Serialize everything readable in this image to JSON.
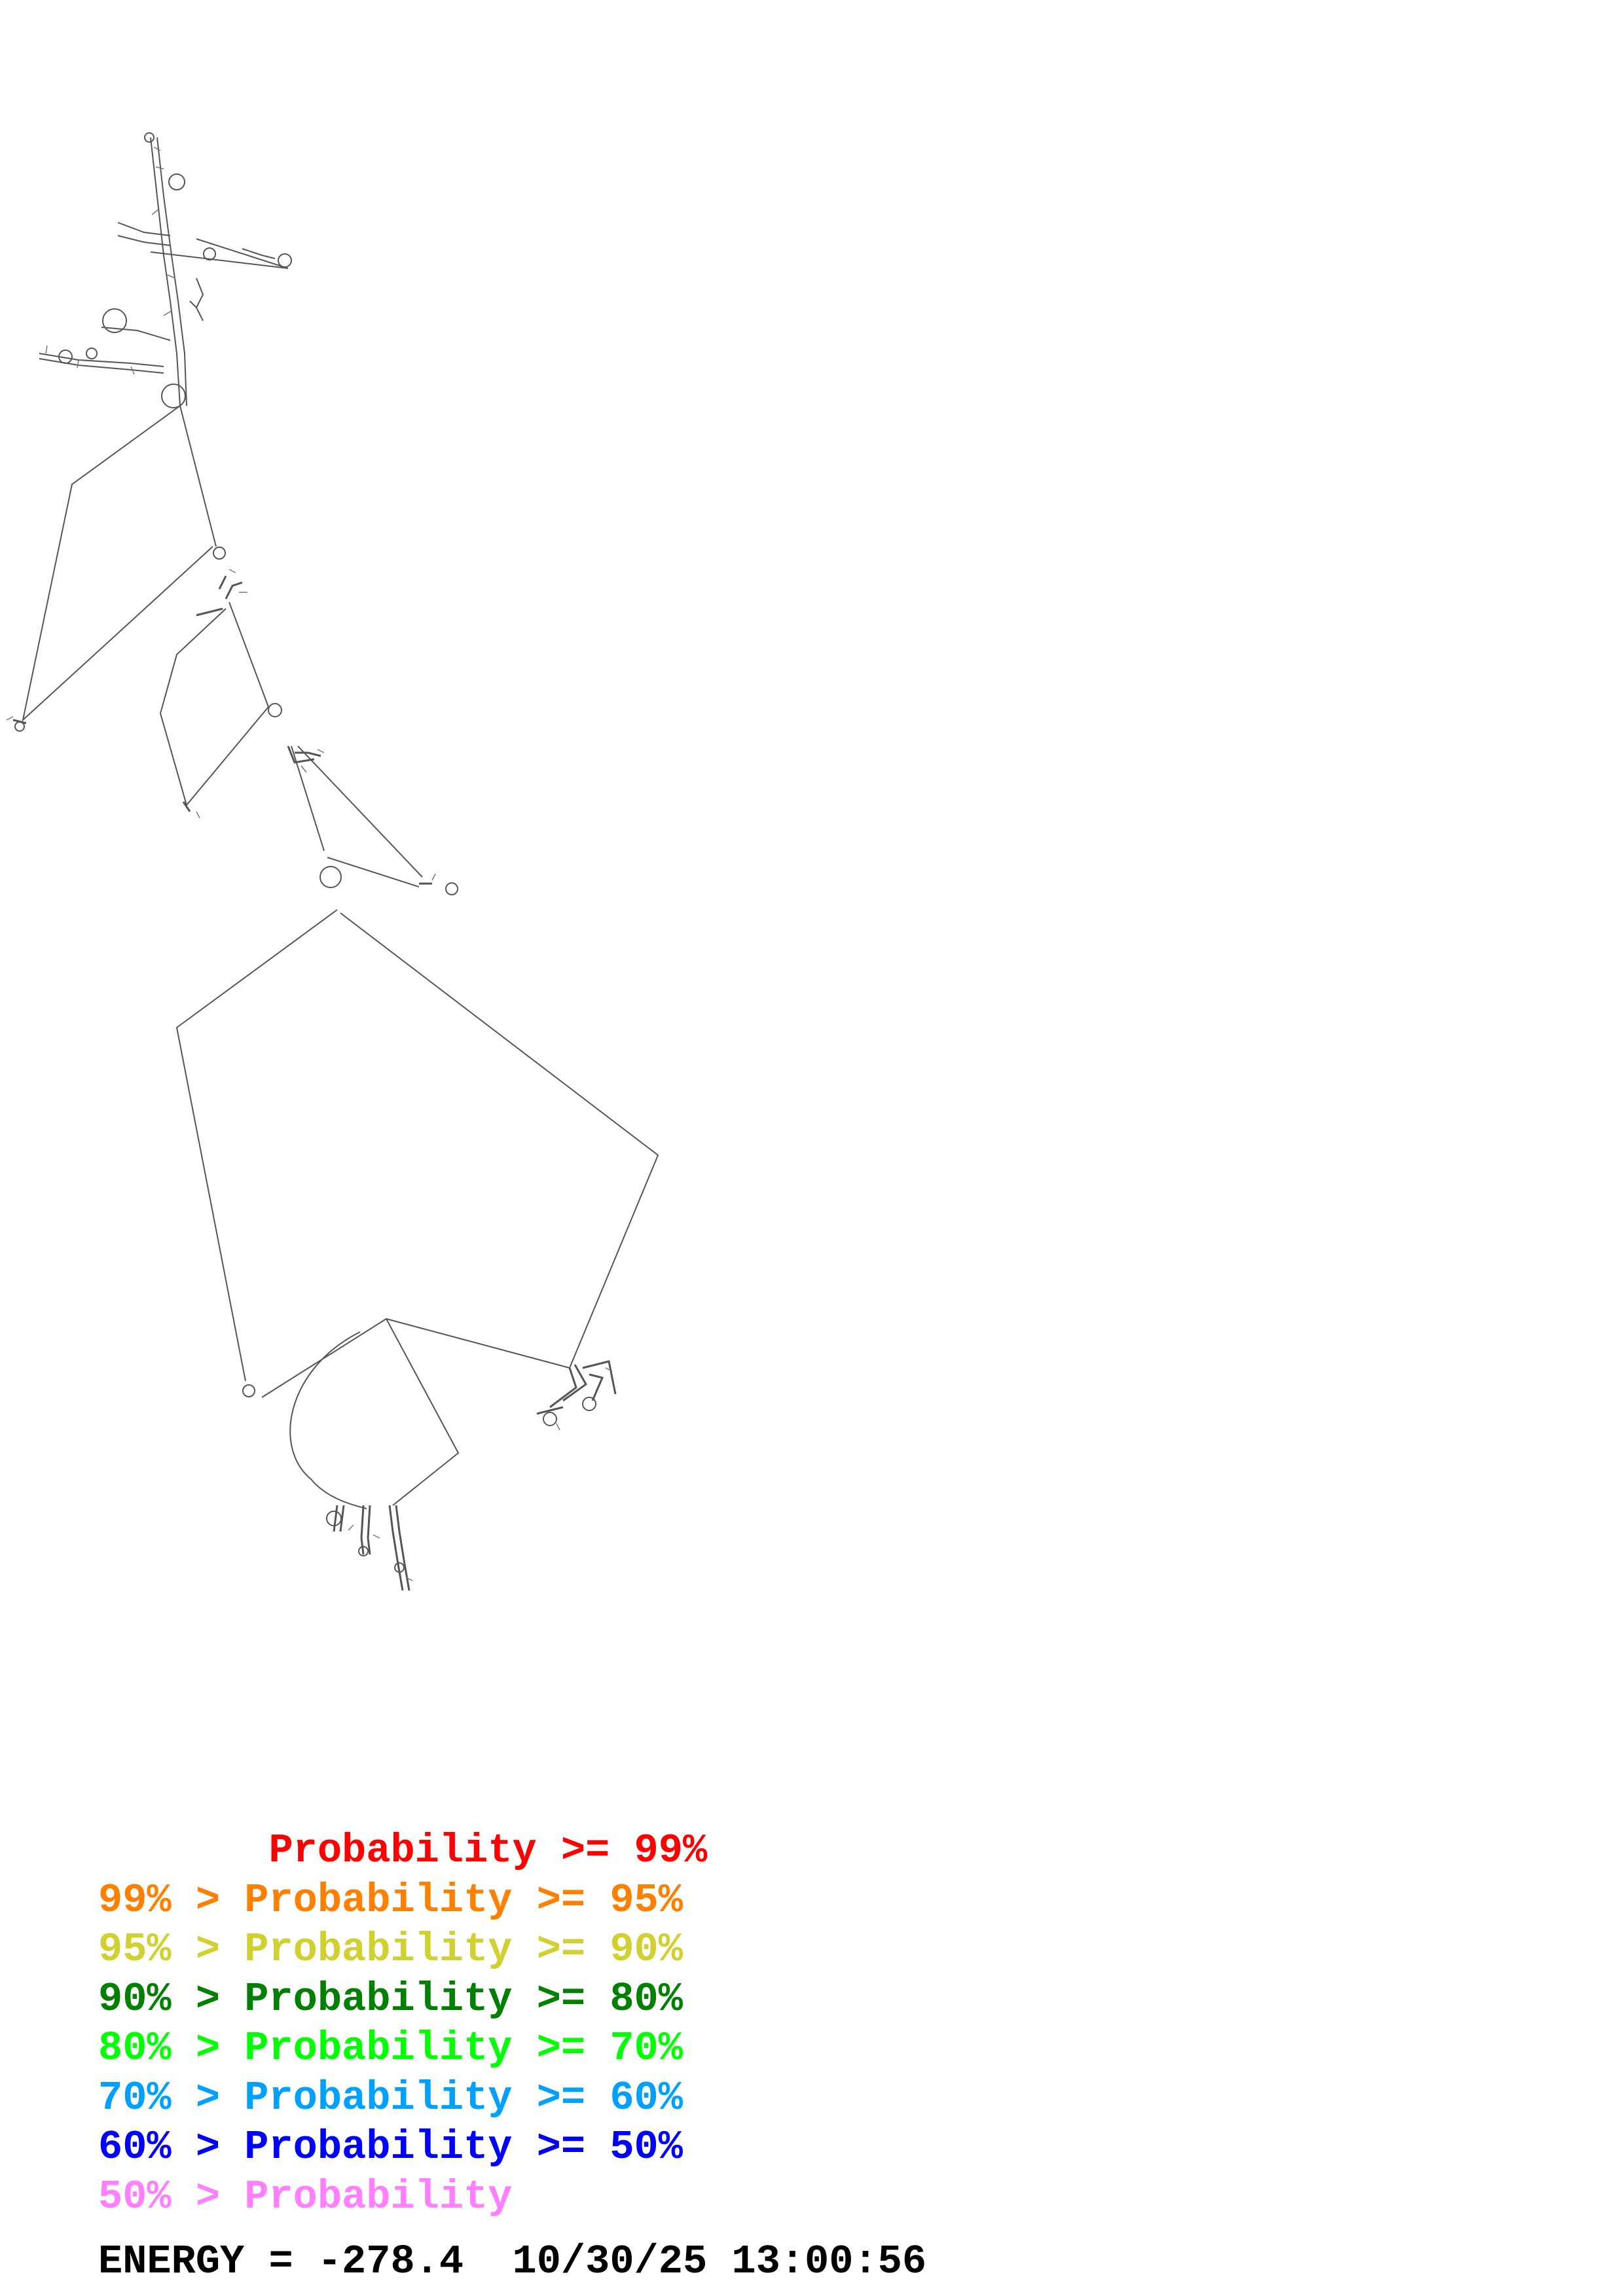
{
  "legend": [
    {
      "text": "       Probability >= 99%",
      "color": "#ff0000"
    },
    {
      "text": "99% > Probability >= 95%",
      "color": "#ff8000"
    },
    {
      "text": "95% > Probability >= 90%",
      "color": "#d0d030"
    },
    {
      "text": "90% > Probability >= 80%",
      "color": "#008000"
    },
    {
      "text": "80% > Probability >= 70%",
      "color": "#00ff00"
    },
    {
      "text": "70% > Probability >= 60%",
      "color": "#00a0ff"
    },
    {
      "text": "60% > Probability >= 50%",
      "color": "#0000ff"
    },
    {
      "text": "50% > Probability",
      "color": "#ff80ff"
    }
  ],
  "energy_label": "ENERGY = -278.4",
  "timestamp": "10/30/25 13:00:56",
  "structure_color": "#555555"
}
